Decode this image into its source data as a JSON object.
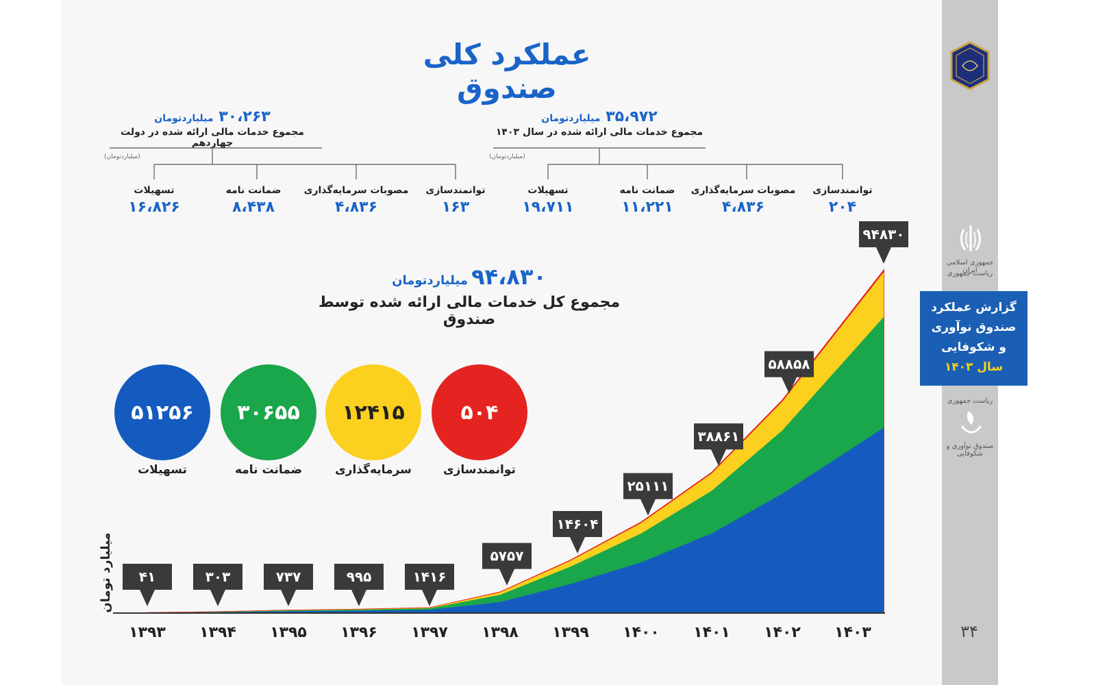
{
  "title": "عملکرد کلی صندوق",
  "summary_left": {
    "value": "۳۰،۲۶۳",
    "unit": "میلیاردتومان",
    "label": "مجموع خدمات مالی ارائه شده در دولت چهاردهم",
    "small_unit": "(میلیاردتومان)",
    "items": [
      {
        "name": "توانمندسازی",
        "value": "۱۶۳"
      },
      {
        "name": "مصوبات سرمایه‌گذاری",
        "value": "۴،۸۳۶"
      },
      {
        "name": "ضمانت نامه",
        "value": "۸،۴۳۸"
      },
      {
        "name": "تسهیلات",
        "value": "۱۶،۸۲۶"
      }
    ]
  },
  "summary_right": {
    "value": "۳۵،۹۷۲",
    "unit": "میلیاردتومان",
    "label": "مجموع خدمات مالی ارائه شده در سال ۱۴۰۳",
    "small_unit": "(میلیاردتومان)",
    "items": [
      {
        "name": "توانمندسازی",
        "value": "۲۰۴"
      },
      {
        "name": "مصوبات سرمایه‌گذاری",
        "value": "۴،۸۳۶"
      },
      {
        "name": "ضمانت نامه",
        "value": "۱۱،۲۲۱"
      },
      {
        "name": "تسهیلات",
        "value": "۱۹،۷۱۱"
      }
    ]
  },
  "total": {
    "value": "۹۴،۸۳۰",
    "unit": "میلیاردتومان",
    "label": "مجموع کل خدمات مالی ارائه شده توسط صندوق"
  },
  "circles": [
    {
      "label": "توانمندسازی",
      "value": "۵۰۴",
      "color": "#e52421",
      "text_color": "#ffffff"
    },
    {
      "label": "سرمایه‌گذاری",
      "value": "۱۲۴۱۵",
      "color": "#fbd01e",
      "text_color": "#222222"
    },
    {
      "label": "ضمانت نامه",
      "value": "۳۰۶۵۵",
      "color": "#1aa64a",
      "text_color": "#ffffff"
    },
    {
      "label": "تسهیلات",
      "value": "۵۱۲۵۶",
      "color": "#155bbf",
      "text_color": "#ffffff"
    }
  ],
  "sidebar": {
    "report_line1": "گزارش عملکرد",
    "report_line2": "صندوق نوآوری",
    "report_line3": "و شکوفایی",
    "report_year": "سال ۱۴۰۳",
    "gov_text_1": "جمهوری اسلامی ایران",
    "gov_text_2": "ریاست جمهوری",
    "fund_text_1": "ریاست جمهوری",
    "fund_text_2": "صندوق نوآوری و شکوفایی",
    "page_number": "۳۴"
  },
  "chart_data": {
    "type": "area",
    "ylabel": "میلیارد تومان",
    "x": [
      "۱۳۹۳",
      "۱۳۹۴",
      "۱۳۹۵",
      "۱۳۹۶",
      "۱۳۹۷",
      "۱۳۹۸",
      "۱۳۹۹",
      "۱۴۰۰",
      "۱۴۰۱",
      "۱۴۰۲",
      "۱۴۰۳"
    ],
    "x_values": [
      1393,
      1394,
      1395,
      1396,
      1397,
      1398,
      1399,
      1400,
      1401,
      1402,
      1403
    ],
    "total_labels": [
      "۴۱",
      "۳۰۳",
      "۷۳۷",
      "۹۹۵",
      "۱۴۱۶",
      "۵۷۵۷",
      "۱۴۶۰۴",
      "۲۵۱۱۱",
      "۳۸۸۶۱",
      "۵۸۸۵۸",
      "۹۴۸۳۰"
    ],
    "totals": [
      41,
      303,
      737,
      995,
      1416,
      5757,
      14604,
      25111,
      38861,
      58858,
      94830
    ],
    "ylim": [
      0,
      100000
    ],
    "stack_order": [
      "تسهیلات",
      "ضمانت نامه",
      "سرمایه‌گذاری",
      "توانمندسازی"
    ],
    "series": [
      {
        "name": "تسهیلات",
        "color": "#155bbf",
        "values": [
          30,
          200,
          450,
          600,
          850,
          3000,
          8000,
          14000,
          22000,
          33000,
          51256
        ]
      },
      {
        "name": "ضمانت نامه",
        "color": "#1aa64a",
        "values": [
          8,
          80,
          220,
          300,
          430,
          2000,
          4800,
          8000,
          11800,
          17500,
          30655
        ]
      },
      {
        "name": "سرمایه‌گذاری",
        "color": "#fbd01e",
        "values": [
          2,
          18,
          55,
          80,
          120,
          680,
          1650,
          2900,
          4800,
          8000,
          12415
        ]
      },
      {
        "name": "توانمندسازی",
        "color": "#e52421",
        "values": [
          1,
          5,
          12,
          15,
          16,
          77,
          154,
          211,
          261,
          358,
          504
        ]
      }
    ]
  }
}
